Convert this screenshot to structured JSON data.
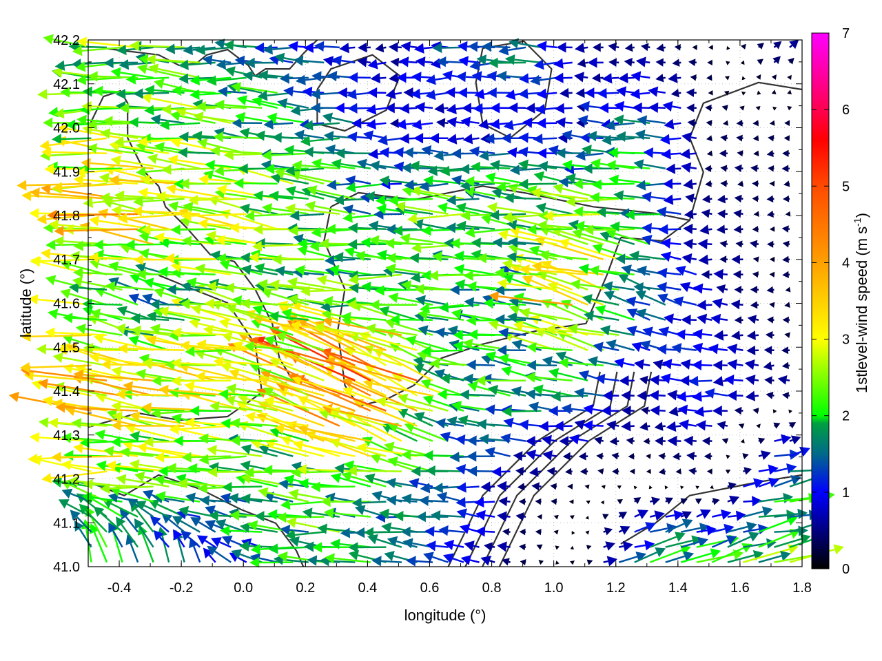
{
  "chart_data": {
    "type": "vector-field",
    "xlabel": "longitude (°)",
    "ylabel": "latitude (°)",
    "xlim": [
      -0.5,
      1.8
    ],
    "ylim": [
      41.0,
      42.2
    ],
    "xticks": [
      "-0.4",
      "-0.2",
      "0.0",
      "0.2",
      "0.4",
      "0.6",
      "0.8",
      "1.0",
      "1.2",
      "1.4",
      "1.6",
      "1.8"
    ],
    "xtick_values": [
      -0.4,
      -0.2,
      0.0,
      0.2,
      0.4,
      0.6,
      0.8,
      1.0,
      1.2,
      1.4,
      1.6,
      1.8
    ],
    "yticks": [
      "41.0",
      "41.1",
      "41.2",
      "41.3",
      "41.4",
      "41.5",
      "41.6",
      "41.7",
      "41.8",
      "41.9",
      "42.0",
      "42.1",
      "42.2"
    ],
    "ytick_values": [
      41.0,
      41.1,
      41.2,
      41.3,
      41.4,
      41.5,
      41.6,
      41.7,
      41.8,
      41.9,
      42.0,
      42.1,
      42.2
    ],
    "grid": true,
    "colorbar": {
      "label_main": "1stlevel-wind speed (m s",
      "label_sup": "-1",
      "label_end": ")",
      "range": [
        0,
        7
      ],
      "ticks": [
        "0",
        "1",
        "2",
        "3",
        "4",
        "5",
        "6",
        "7"
      ],
      "tick_values": [
        0,
        1,
        2,
        3,
        4,
        5,
        6,
        7
      ],
      "palette": [
        [
          0,
          "#000000"
        ],
        [
          1,
          "#0000ff"
        ],
        [
          1.5,
          "#006a8a"
        ],
        [
          1.9,
          "#00a040"
        ],
        [
          2,
          "#00ff00"
        ],
        [
          3,
          "#ffff00"
        ],
        [
          4,
          "#ffa000"
        ],
        [
          5,
          "#ff4a00"
        ],
        [
          5.6,
          "#ff0000"
        ],
        [
          6,
          "#ff0050"
        ],
        [
          7,
          "#ff00ff"
        ]
      ]
    },
    "vector_grid": {
      "lon_nodes": [
        -0.5,
        -0.3,
        -0.1,
        0.1,
        0.3,
        0.5,
        0.7,
        0.9,
        1.1,
        1.3,
        1.5,
        1.7
      ],
      "lat_nodes": [
        41.0,
        41.2,
        41.4,
        41.6,
        41.8,
        42.0,
        42.2
      ],
      "u": [
        [
          -0.3,
          -0.3,
          -0.5,
          -1.5,
          -2.0,
          -1.5,
          -1.0,
          -0.3,
          0.2,
          2.0,
          2.2,
          2.3
        ],
        [
          -2.5,
          -2.5,
          -2.2,
          -2.0,
          -2.2,
          -1.8,
          -1.5,
          -0.5,
          -0.2,
          -0.2,
          -0.3,
          1.5
        ],
        [
          -3.5,
          -3.2,
          -3.0,
          -2.5,
          -4.0,
          -4.5,
          -2.0,
          -2.0,
          -1.5,
          -0.5,
          -1.2,
          -0.5
        ],
        [
          -2.5,
          -1.5,
          -2.2,
          -2.3,
          -2.0,
          -2.2,
          -1.8,
          -1.5,
          -3.5,
          -1.5,
          -0.8,
          -0.3
        ],
        [
          -3.0,
          -3.5,
          -3.0,
          -2.5,
          -2.2,
          -1.8,
          -2.3,
          -2.3,
          -2.5,
          -2.0,
          -0.5,
          -0.3
        ],
        [
          -2.5,
          -2.5,
          -2.2,
          -2.0,
          -1.5,
          -0.8,
          -0.8,
          -0.8,
          -0.8,
          -1.5,
          -0.3,
          -0.3
        ],
        [
          -2.3,
          -2.3,
          -2.0,
          -1.5,
          -1.0,
          -0.6,
          -1.2,
          -2.0,
          -0.6,
          -0.4,
          -0.2,
          0.5
        ]
      ],
      "v": [
        [
          2.0,
          1.8,
          1.0,
          0.3,
          0.0,
          0.3,
          0.2,
          0.1,
          0.1,
          0.6,
          0.6,
          0.5
        ],
        [
          0.1,
          0.1,
          0.1,
          0.1,
          0.2,
          0.2,
          0.1,
          0.0,
          0.0,
          0.0,
          0.0,
          0.3
        ],
        [
          0.5,
          0.6,
          0.3,
          0.5,
          1.8,
          2.2,
          0.4,
          0.2,
          0.2,
          0.0,
          0.0,
          0.0
        ],
        [
          0.2,
          0.4,
          0.3,
          0.5,
          0.2,
          0.1,
          0.1,
          0.2,
          1.0,
          0.5,
          0.1,
          0.0
        ],
        [
          0.2,
          0.3,
          0.3,
          0.3,
          0.2,
          0.1,
          0.1,
          0.2,
          0.3,
          0.2,
          0.0,
          0.0
        ],
        [
          0.1,
          0.1,
          0.2,
          0.2,
          0.1,
          0.0,
          0.0,
          0.0,
          0.0,
          0.0,
          0.0,
          0.0
        ],
        [
          0.1,
          0.1,
          0.1,
          0.0,
          0.0,
          0.0,
          0.0,
          0.0,
          0.0,
          0.0,
          0.0,
          0.3
        ]
      ]
    },
    "contours": [
      [
        [
          -0.451,
          42.181
        ],
        [
          -0.273,
          42.166
        ],
        [
          -0.207,
          42.142
        ],
        [
          -0.151,
          42.147
        ],
        [
          -0.118,
          42.166
        ],
        [
          -0.051,
          42.178
        ],
        [
          0.016,
          42.142
        ],
        [
          0.038,
          42.118
        ],
        [
          0.071,
          42.134
        ],
        [
          0.149,
          42.134
        ],
        [
          0.193,
          42.169
        ],
        [
          0.238,
          42.2
        ]
      ],
      [
        [
          -0.5,
          42.0
        ],
        [
          -0.451,
          42.071
        ],
        [
          -0.396,
          42.084
        ],
        [
          -0.373,
          42.056
        ],
        [
          -0.373,
          41.977
        ],
        [
          -0.318,
          41.899
        ],
        [
          -0.273,
          41.867
        ],
        [
          -0.251,
          41.82
        ],
        [
          -0.184,
          41.773
        ],
        [
          -0.107,
          41.711
        ],
        [
          -0.029,
          41.695
        ],
        [
          0.038,
          41.632
        ],
        [
          0.093,
          41.554
        ],
        [
          0.116,
          41.475
        ],
        [
          0.149,
          41.436
        ]
      ],
      [
        [
          1.216,
          41.75
        ],
        [
          1.349,
          41.742
        ],
        [
          1.438,
          41.789
        ],
        [
          1.482,
          41.899
        ],
        [
          1.438,
          41.977
        ],
        [
          1.482,
          42.056
        ],
        [
          1.66,
          42.103
        ],
        [
          1.8,
          42.087
        ]
      ],
      [
        [
          0.282,
          41.82
        ],
        [
          0.371,
          41.852
        ],
        [
          0.549,
          41.836
        ],
        [
          0.771,
          41.867
        ],
        [
          0.904,
          41.852
        ],
        [
          1.127,
          41.82
        ],
        [
          1.327,
          41.805
        ],
        [
          1.438,
          41.789
        ]
      ],
      [
        [
          0.282,
          41.82
        ],
        [
          0.26,
          41.742
        ],
        [
          0.327,
          41.632
        ],
        [
          0.304,
          41.538
        ],
        [
          0.327,
          41.413
        ],
        [
          0.371,
          41.366
        ],
        [
          0.46,
          41.381
        ],
        [
          0.549,
          41.413
        ],
        [
          0.638,
          41.475
        ],
        [
          0.771,
          41.507
        ],
        [
          0.949,
          41.538
        ],
        [
          1.104,
          41.554
        ],
        [
          1.171,
          41.664
        ],
        [
          1.216,
          41.75
        ]
      ],
      [
        [
          0.66,
          41.0
        ],
        [
          0.771,
          41.162
        ],
        [
          0.949,
          41.287
        ],
        [
          1.127,
          41.366
        ],
        [
          1.149,
          41.444
        ]
      ],
      [
        [
          0.715,
          41.0
        ],
        [
          0.826,
          41.162
        ],
        [
          1.004,
          41.287
        ],
        [
          1.182,
          41.366
        ],
        [
          1.204,
          41.444
        ]
      ],
      [
        [
          0.77,
          41.0
        ],
        [
          0.881,
          41.162
        ],
        [
          1.059,
          41.287
        ],
        [
          1.237,
          41.366
        ],
        [
          1.259,
          41.444
        ]
      ],
      [
        [
          0.825,
          41.0
        ],
        [
          0.936,
          41.162
        ],
        [
          1.114,
          41.287
        ],
        [
          1.292,
          41.366
        ],
        [
          1.314,
          41.444
        ]
      ],
      [
        [
          1.216,
          41.052
        ],
        [
          1.327,
          41.099
        ],
        [
          1.438,
          41.162
        ],
        [
          1.66,
          41.193
        ],
        [
          1.8,
          41.209
        ]
      ],
      [
        [
          -0.5,
          41.318
        ],
        [
          -0.34,
          41.35
        ],
        [
          -0.207,
          41.334
        ],
        [
          -0.051,
          41.342
        ],
        [
          0.06,
          41.397
        ],
        [
          0.038,
          41.507
        ],
        [
          -0.051,
          41.601
        ],
        [
          -0.162,
          41.632
        ],
        [
          -0.273,
          41.664
        ]
      ],
      [
        [
          -0.5,
          41.193
        ],
        [
          -0.384,
          41.162
        ],
        [
          -0.273,
          41.209
        ],
        [
          -0.14,
          41.177
        ],
        [
          -0.007,
          41.13
        ],
        [
          0.104,
          41.099
        ],
        [
          0.171,
          41.036
        ],
        [
          0.193,
          41.0
        ]
      ],
      [
        [
          0.238,
          42.087
        ],
        [
          0.282,
          42.134
        ],
        [
          0.416,
          42.166
        ],
        [
          0.504,
          42.118
        ],
        [
          0.46,
          42.04
        ],
        [
          0.327,
          41.993
        ],
        [
          0.238,
          42.009
        ],
        [
          0.238,
          42.087
        ]
      ],
      [
        [
          0.771,
          42.181
        ],
        [
          0.904,
          42.197
        ],
        [
          0.993,
          42.134
        ],
        [
          0.971,
          42.04
        ],
        [
          0.86,
          41.977
        ],
        [
          0.771,
          42.009
        ],
        [
          0.749,
          42.103
        ],
        [
          0.771,
          42.181
        ]
      ]
    ]
  }
}
